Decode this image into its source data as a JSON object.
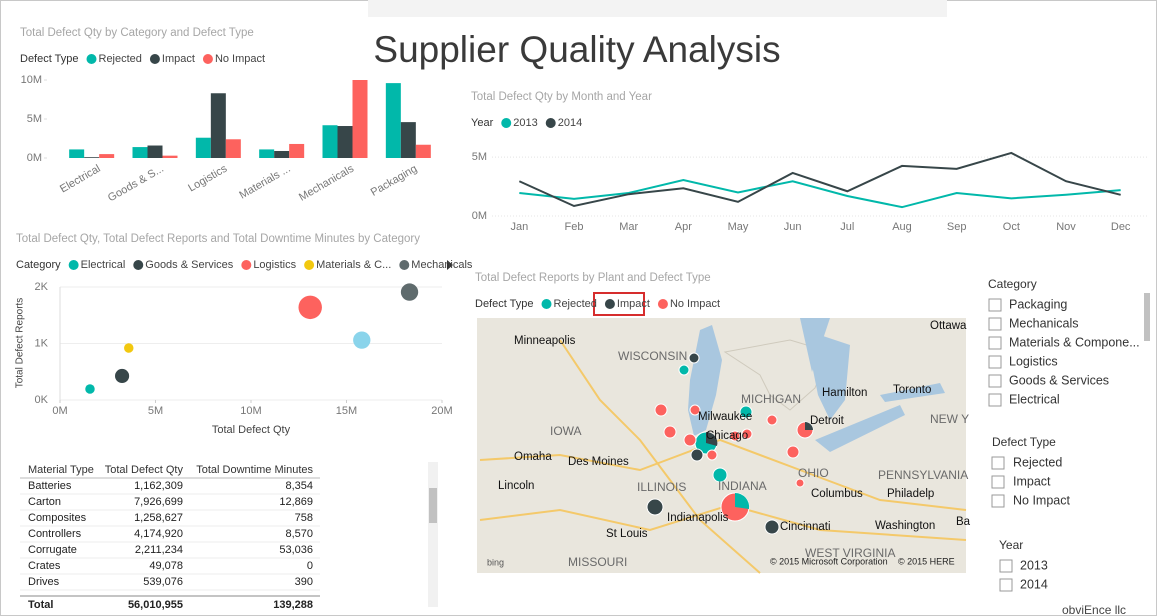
{
  "title": "Supplier Quality Analysis",
  "chart_data": [
    {
      "type": "bar",
      "title": "Total Defect Qty by Category and Defect Type",
      "legend_title": "Defect Type",
      "categories": [
        "Electrical",
        "Goods & S...",
        "Logistics",
        "Materials ...",
        "Mechanicals",
        "Packaging"
      ],
      "series": [
        {
          "name": "Rejected",
          "color": "#01b8aa",
          "values": [
            1100000,
            1400000,
            2600000,
            1100000,
            4200000,
            9600000
          ]
        },
        {
          "name": "Impact",
          "color": "#374649",
          "values": [
            100000,
            1600000,
            8300000,
            900000,
            4100000,
            4600000
          ]
        },
        {
          "name": "No Impact",
          "color": "#fd625e",
          "values": [
            500000,
            300000,
            2400000,
            1800000,
            10000000,
            1700000
          ]
        }
      ],
      "ylim": [
        0,
        10000000
      ],
      "yticks": [
        {
          "value": 0,
          "label": "0M"
        },
        {
          "value": 5000000,
          "label": "5M"
        },
        {
          "value": 10000000,
          "label": "10M"
        }
      ],
      "grid": false
    },
    {
      "type": "line",
      "title": "Total Defect Qty by Month and Year",
      "legend_title": "Year",
      "categories": [
        "Jan",
        "Feb",
        "Mar",
        "Apr",
        "May",
        "Jun",
        "Jul",
        "Aug",
        "Sep",
        "Oct",
        "Nov",
        "Dec"
      ],
      "series": [
        {
          "name": "2013",
          "color": "#01b8aa",
          "values": [
            1950000,
            1450000,
            1950000,
            3050000,
            2000000,
            2950000,
            1700000,
            750000,
            1950000,
            1500000,
            1800000,
            2200000
          ]
        },
        {
          "name": "2014",
          "color": "#374649",
          "values": [
            2950000,
            850000,
            1850000,
            2350000,
            1200000,
            3650000,
            2100000,
            4250000,
            4000000,
            5350000,
            2950000,
            1800000
          ]
        }
      ],
      "ylim": [
        0,
        5600000
      ],
      "yticks": [
        {
          "value": 0,
          "label": "0M"
        },
        {
          "value": 5000000,
          "label": "5M"
        }
      ],
      "grid": true
    },
    {
      "type": "scatter",
      "title": "Total Defect Qty, Total Defect Reports and Total Downtime Minutes by Category",
      "legend_title": "Category",
      "x_label": "Total Defect Qty",
      "y_label": "Total Defect Reports",
      "series": [
        {
          "name": "Electrical",
          "color": "#01b8aa",
          "x": [
            1570000
          ],
          "values": [
            195
          ],
          "sizes": [
            9000
          ]
        },
        {
          "name": "Goods & Services",
          "color": "#374649",
          "x": [
            3250000
          ],
          "values": [
            425
          ],
          "sizes": [
            20000
          ]
        },
        {
          "name": "Logistics",
          "color": "#fd625e",
          "x": [
            13100000
          ],
          "values": [
            1640
          ],
          "sizes": [
            55000
          ]
        },
        {
          "name": "Materials & C...",
          "color": "#f2c80f",
          "x": [
            3600000
          ],
          "values": [
            920
          ],
          "sizes": [
            9000
          ]
        },
        {
          "name": "Mechanicals",
          "color": "#5f6b6d",
          "x": [
            18300000
          ],
          "values": [
            1910
          ],
          "sizes": [
            30000
          ]
        },
        {
          "name": null,
          "color": "#8ad4eb",
          "x": [
            15800000
          ],
          "values": [
            1060
          ],
          "sizes": [
            30000
          ]
        }
      ],
      "xlim": [
        0,
        20000000
      ],
      "xticks": [
        {
          "value": 0,
          "label": "0M"
        },
        {
          "value": 5000000,
          "label": "5M"
        },
        {
          "value": 10000000,
          "label": "10M"
        },
        {
          "value": 15000000,
          "label": "15M"
        },
        {
          "value": 20000000,
          "label": "20M"
        }
      ],
      "ylim": [
        0,
        2000
      ],
      "yticks": [
        {
          "value": 0,
          "label": "0K"
        },
        {
          "value": 1000,
          "label": "1K"
        },
        {
          "value": 2000,
          "label": "2K"
        }
      ]
    }
  ],
  "table": {
    "columns": [
      "Material Type",
      "Total Defect Qty",
      "Total Downtime Minutes"
    ],
    "rows": [
      [
        "Batteries",
        "1,162,309",
        "8,354"
      ],
      [
        "Carton",
        "7,926,699",
        "12,869"
      ],
      [
        "Composites",
        "1,258,627",
        "758"
      ],
      [
        "Controllers",
        "4,174,920",
        "8,570"
      ],
      [
        "Corrugate",
        "2,211,234",
        "53,036"
      ],
      [
        "Crates",
        "49,078",
        "0"
      ],
      [
        "Drives",
        "539,076",
        "390"
      ]
    ],
    "total": [
      "Total",
      "56,010,955",
      "139,288"
    ]
  },
  "map": {
    "title": "Total Defect Reports by Plant and Defect Type",
    "legend_title": "Defect Type",
    "legend": [
      {
        "name": "Rejected",
        "color": "#01b8aa"
      },
      {
        "name": "Impact",
        "color": "#374649"
      },
      {
        "name": "No Impact",
        "color": "#fd625e"
      }
    ],
    "labels": [
      "Ottawa",
      "Minneapolis",
      "WISCONSIN",
      "MICHIGAN",
      "Milwaukee",
      "Hamilton",
      "Toronto",
      "Detroit",
      "IOWA",
      "Chicago",
      "NEW Y",
      "Omaha",
      "Des Moines",
      "Lincoln",
      "ILLINOIS",
      "OHIO",
      "INDIANA",
      "PENNSYLVANIA",
      "Columbus",
      "Philadelp",
      "Indianapolis",
      "Washington",
      "Ba",
      "St Louis",
      "Cincinnati",
      "MISSOURI",
      "WEST VIRGINIA"
    ],
    "copyright": [
      "bing",
      "© 2015 Microsoft Corporation",
      "© 2015 HERE"
    ]
  },
  "slicers": [
    {
      "title": "Category",
      "items": [
        "Packaging",
        "Mechanicals",
        "Materials & Compone...",
        "Logistics",
        "Goods & Services",
        "Electrical"
      ]
    },
    {
      "title": "Defect Type",
      "items": [
        "Rejected",
        "Impact",
        "No Impact"
      ]
    },
    {
      "title": "Year",
      "items": [
        "2013",
        "2014"
      ]
    }
  ],
  "footer": "obviEnce llc"
}
